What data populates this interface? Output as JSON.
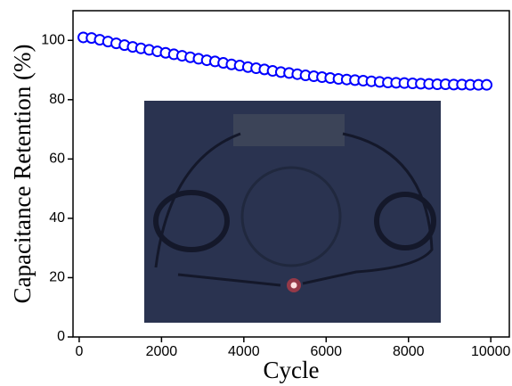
{
  "chart_data": {
    "type": "scatter",
    "x_label": "Cycle",
    "y_label": "Capacitance Retention (%)",
    "xlim": [
      -150,
      10450
    ],
    "ylim": [
      0,
      110
    ],
    "xticks": [
      0,
      2000,
      4000,
      6000,
      8000,
      10000
    ],
    "yticks": [
      0,
      20,
      40,
      60,
      80,
      100
    ],
    "series": [
      {
        "color": "#0000ff",
        "x": [
          100,
          300,
          500,
          700,
          900,
          1100,
          1300,
          1500,
          1700,
          1900,
          2100,
          2300,
          2500,
          2700,
          2900,
          3100,
          3300,
          3500,
          3700,
          3900,
          4100,
          4300,
          4500,
          4700,
          4900,
          5100,
          5300,
          5500,
          5700,
          5900,
          6100,
          6300,
          6500,
          6700,
          6900,
          7100,
          7300,
          7500,
          7700,
          7900,
          8100,
          8300,
          8500,
          8700,
          8900,
          9100,
          9300,
          9500,
          9700,
          9900
        ],
        "values": [
          101.0,
          100.8,
          100.2,
          99.6,
          99.0,
          98.4,
          97.8,
          97.3,
          96.8,
          96.3,
          95.8,
          95.3,
          94.8,
          94.3,
          93.8,
          93.3,
          92.9,
          92.4,
          91.9,
          91.5,
          91.0,
          90.6,
          90.2,
          89.7,
          89.3,
          89.0,
          88.6,
          88.2,
          87.9,
          87.6,
          87.3,
          87.0,
          86.8,
          86.6,
          86.4,
          86.2,
          86.0,
          85.8,
          85.7,
          85.6,
          85.5,
          85.4,
          85.3,
          85.2,
          85.2,
          85.1,
          85.1,
          85.0,
          85.0,
          85.0
        ]
      }
    ]
  }
}
